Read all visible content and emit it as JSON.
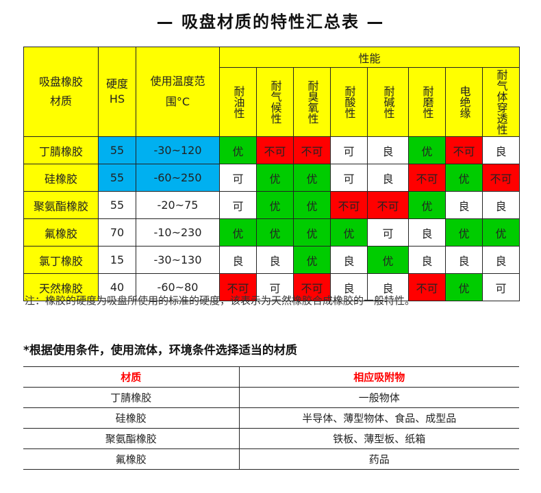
{
  "title": "— 吸盘材质的特性汇总表 —",
  "colors": {
    "header": "#ffff00",
    "highlight_blue": "#00b0f0",
    "good": "#00cc00",
    "bad": "#ff0000",
    "normal": "#ffffff",
    "accent_text": "#ff0000"
  },
  "table1": {
    "headers": {
      "material": "吸盘橡胶材质",
      "hardness": "硬度HS",
      "temp": "使用温度范围°C",
      "performance": "性能",
      "properties": [
        "耐油性",
        "耐气候性",
        "耐臭氧性",
        "耐酸性",
        "耐碱性",
        "耐磨性",
        "电绝缘",
        "耐气体穿透性"
      ]
    },
    "rows": [
      {
        "material": "丁腈橡胶",
        "hardness": "55",
        "temp": "-30~120",
        "highlight": true,
        "values": [
          "优",
          "不可",
          "不可",
          "可",
          "良",
          "优",
          "不可",
          "良"
        ]
      },
      {
        "material": "硅橡胶",
        "hardness": "55",
        "temp": "-60~250",
        "highlight": true,
        "values": [
          "可",
          "优",
          "优",
          "可",
          "良",
          "不可",
          "优",
          "不可"
        ]
      },
      {
        "material": "聚氨酯橡胶",
        "hardness": "55",
        "temp": "-20~75",
        "highlight": false,
        "values": [
          "可",
          "优",
          "优",
          "不可",
          "不可",
          "优",
          "良",
          "良"
        ]
      },
      {
        "material": "氟橡胶",
        "hardness": "70",
        "temp": "-10~230",
        "highlight": false,
        "values": [
          "优",
          "优",
          "优",
          "优",
          "可",
          "良",
          "优",
          "优"
        ]
      },
      {
        "material": "氯丁橡胶",
        "hardness": "15",
        "temp": "-30~130",
        "highlight": false,
        "values": [
          "良",
          "良",
          "优",
          "良",
          "优",
          "良",
          "良",
          "良"
        ]
      },
      {
        "material": "天然橡胶",
        "hardness": "40",
        "temp": "-60~80",
        "highlight": false,
        "values": [
          "不可",
          "可",
          "不可",
          "良",
          "良",
          "不可",
          "优",
          "可"
        ]
      }
    ]
  },
  "note": "注：橡胶的硬度为吸盘所使用的标准的硬度，该表示为天然橡胶合成橡胶的一般特性。",
  "subtitle": "*根据使用条件，使用流体，环境条件选择适当的材质",
  "table2": {
    "headers": [
      "材质",
      "相应吸附物"
    ],
    "rows": [
      [
        "丁腈橡胶",
        "一般物体"
      ],
      [
        "硅橡胶",
        "半导体、薄型物体、食品、成型品"
      ],
      [
        "聚氨酯橡胶",
        "铁板、薄型板、纸箱"
      ],
      [
        "氟橡胶",
        "药品"
      ]
    ]
  }
}
